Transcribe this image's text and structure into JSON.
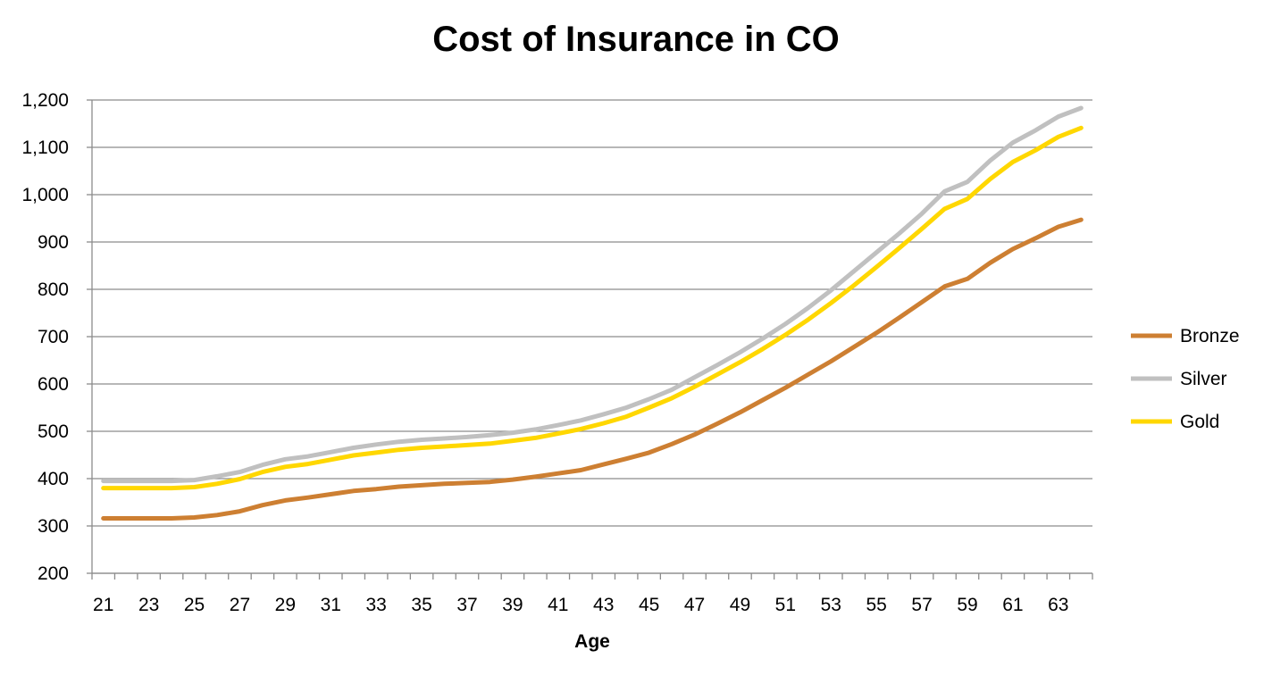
{
  "chart_data": {
    "type": "line",
    "title": "Cost of Insurance in CO",
    "xlabel": "Age",
    "ylabel": "",
    "ylim": [
      200,
      1200
    ],
    "yticks": [
      200,
      300,
      400,
      500,
      600,
      700,
      800,
      900,
      1000,
      1100,
      1200
    ],
    "ytick_labels": [
      "200",
      "300",
      "400",
      "500",
      "600",
      "700",
      "800",
      "900",
      "1,000",
      "1,100",
      "1,200"
    ],
    "xtick_labels": [
      "21",
      "23",
      "25",
      "27",
      "29",
      "31",
      "33",
      "35",
      "37",
      "39",
      "41",
      "43",
      "45",
      "47",
      "49",
      "51",
      "53",
      "55",
      "57",
      "59",
      "61",
      "63"
    ],
    "grid": true,
    "legend_position": "right",
    "x": [
      21,
      22,
      23,
      24,
      25,
      26,
      27,
      28,
      29,
      30,
      31,
      32,
      33,
      34,
      35,
      36,
      37,
      38,
      39,
      40,
      41,
      42,
      43,
      44,
      45,
      46,
      47,
      48,
      49,
      50,
      51,
      52,
      53,
      54,
      55,
      56,
      57,
      58,
      59,
      60,
      61,
      62,
      63,
      64
    ],
    "series": [
      {
        "name": "Bronze",
        "color": "#CD7F32",
        "values": [
          316,
          316,
          316,
          316,
          318,
          323,
          331,
          344,
          354,
          360,
          367,
          374,
          378,
          383,
          386,
          389,
          391,
          393,
          398,
          404,
          411,
          418,
          430,
          442,
          455,
          473,
          493,
          516,
          540,
          566,
          592,
          620,
          648,
          678,
          708,
          740,
          773,
          806,
          822,
          856,
          885,
          908,
          932,
          947
        ]
      },
      {
        "name": "Silver",
        "color": "#C0C0C0",
        "values": [
          395,
          395,
          395,
          395,
          397,
          405,
          414,
          429,
          441,
          447,
          456,
          465,
          472,
          478,
          482,
          485,
          488,
          492,
          497,
          504,
          513,
          523,
          536,
          550,
          568,
          588,
          614,
          640,
          667,
          696,
          727,
          761,
          798,
          838,
          878,
          918,
          960,
          1007,
          1027,
          1072,
          1110,
          1136,
          1165,
          1183
        ]
      },
      {
        "name": "Gold",
        "color": "#FFD700",
        "values": [
          380,
          380,
          380,
          380,
          382,
          389,
          399,
          414,
          425,
          431,
          440,
          449,
          455,
          461,
          465,
          468,
          471,
          474,
          480,
          486,
          495,
          505,
          517,
          531,
          550,
          570,
          594,
          620,
          646,
          674,
          704,
          736,
          771,
          808,
          847,
          887,
          928,
          970,
          991,
          1033,
          1069,
          1094,
          1122,
          1141
        ]
      }
    ]
  }
}
